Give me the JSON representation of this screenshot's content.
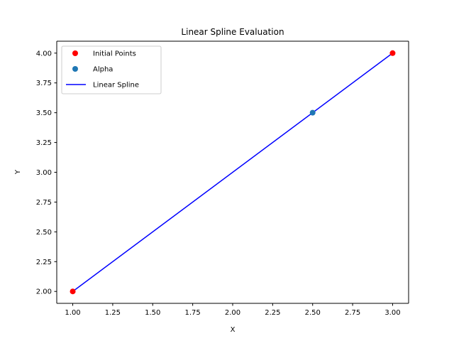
{
  "chart_data": {
    "type": "scatter",
    "title": "Linear Spline Evaluation",
    "xlabel": "X",
    "ylabel": "Y",
    "xlim": [
      0.9,
      3.1
    ],
    "ylim": [
      1.9,
      4.1
    ],
    "xticks": [
      1.0,
      1.25,
      1.5,
      1.75,
      2.0,
      2.25,
      2.5,
      2.75,
      3.0
    ],
    "yticks": [
      2.0,
      2.25,
      2.5,
      2.75,
      3.0,
      3.25,
      3.5,
      3.75,
      4.0
    ],
    "xtick_labels": [
      "1.00",
      "1.25",
      "1.50",
      "1.75",
      "2.00",
      "2.25",
      "2.50",
      "2.75",
      "3.00"
    ],
    "ytick_labels": [
      "2.00",
      "2.25",
      "2.50",
      "2.75",
      "3.00",
      "3.25",
      "3.50",
      "3.75",
      "4.00"
    ],
    "grid": false,
    "legend_position": "top-left",
    "series": [
      {
        "name": "Initial Points",
        "kind": "scatter",
        "color": "#ff0000",
        "x": [
          1.0,
          3.0
        ],
        "y": [
          2.0,
          4.0
        ]
      },
      {
        "name": "Alpha",
        "kind": "scatter",
        "color": "#1f77b4",
        "x": [
          2.5
        ],
        "y": [
          3.5
        ]
      },
      {
        "name": "Linear Spline",
        "kind": "line",
        "color": "#0000ff",
        "x": [
          1.0,
          3.0
        ],
        "y": [
          2.0,
          4.0
        ]
      }
    ]
  }
}
